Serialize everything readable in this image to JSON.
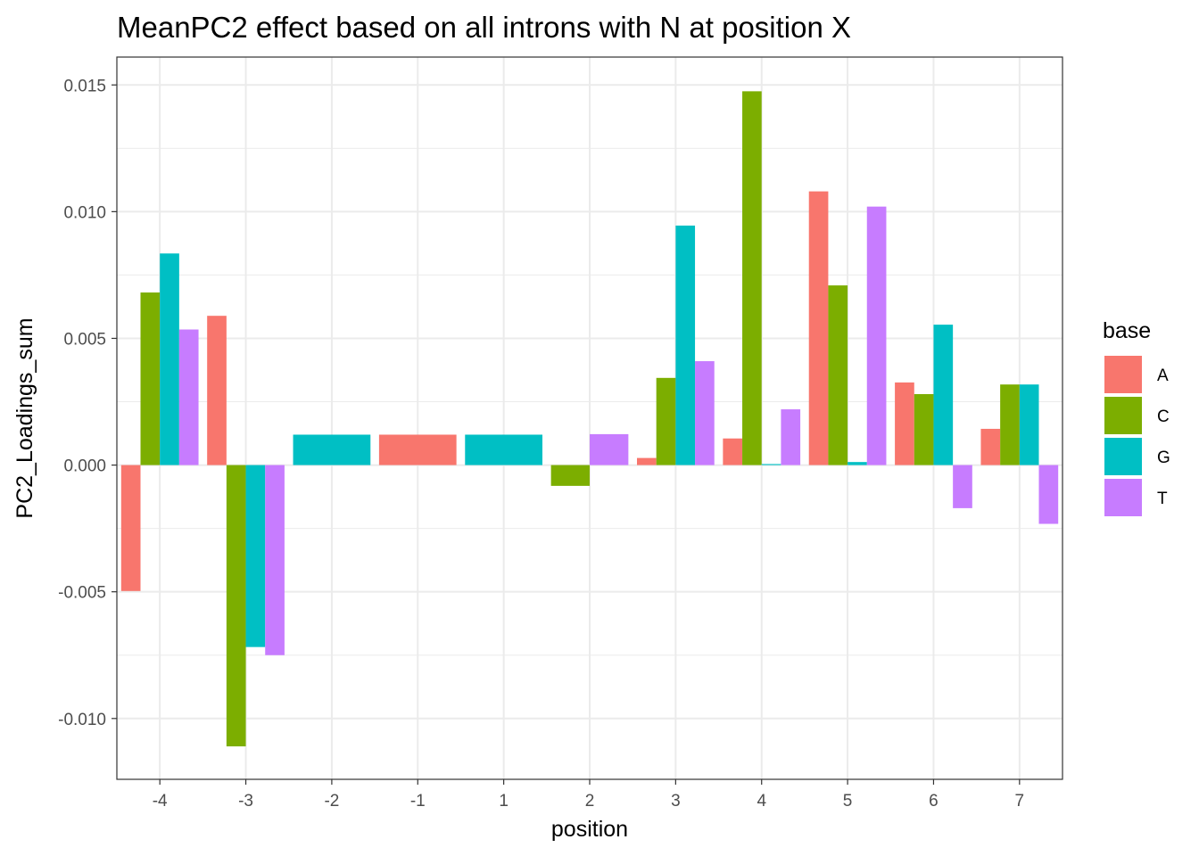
{
  "chart_data": {
    "type": "bar",
    "title": "MeanPC2 effect based on all introns with N at position X",
    "xlabel": "position",
    "ylabel": "PC2_Loadings_sum",
    "categories": [
      "-4",
      "-3",
      "-2",
      "-1",
      "1",
      "2",
      "3",
      "4",
      "5",
      "6",
      "7"
    ],
    "ylim": [
      -0.0124,
      0.0161
    ],
    "yticks": [
      -0.01,
      -0.005,
      0.0,
      0.005,
      0.01,
      0.015
    ],
    "ytick_labels": [
      "-0.010",
      "-0.005",
      "0.000",
      "0.005",
      "0.010",
      "0.015"
    ],
    "grid": true,
    "legend": {
      "title": "base",
      "position": "right"
    },
    "series": [
      {
        "name": "A",
        "color": "#F8766D",
        "values": [
          -0.00497,
          0.00589,
          null,
          0.0012,
          null,
          null,
          0.00028,
          0.00105,
          0.0108,
          0.00326,
          0.00143
        ]
      },
      {
        "name": "C",
        "color": "#7CAE00",
        "values": [
          0.00681,
          -0.0111,
          null,
          null,
          null,
          -0.00082,
          0.00344,
          0.01475,
          0.00709,
          0.0028,
          0.00318
        ]
      },
      {
        "name": "G",
        "color": "#00BFC4",
        "values": [
          0.00835,
          -0.00718,
          0.0012,
          null,
          0.0012,
          null,
          0.00945,
          4e-05,
          0.00012,
          0.00554,
          0.00318
        ]
      },
      {
        "name": "T",
        "color": "#C77CFF",
        "values": [
          0.00535,
          -0.0075,
          null,
          null,
          null,
          0.00122,
          0.0041,
          0.0022,
          0.0102,
          -0.0017,
          -0.00232
        ]
      }
    ]
  }
}
